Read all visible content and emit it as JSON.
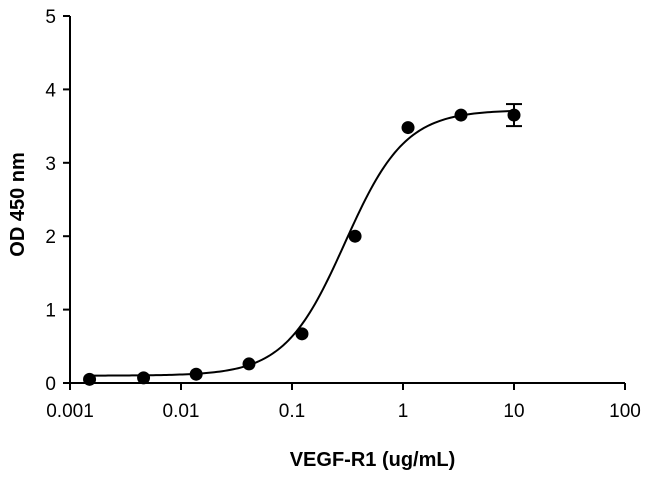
{
  "chart_data": {
    "type": "scatter",
    "title": "",
    "xlabel": "VEGF-R1 (ug/mL)",
    "ylabel": "OD 450 nm",
    "x_scale": "log",
    "xlim": [
      0.001,
      100
    ],
    "ylim": [
      0,
      5
    ],
    "x_ticks": [
      "0.001",
      "0.01",
      "0.1",
      "1",
      "10",
      "100"
    ],
    "y_ticks": [
      "0",
      "1",
      "2",
      "3",
      "4",
      "5"
    ],
    "grid": false,
    "series": [
      {
        "x": [
          0.0015,
          0.0046,
          0.0137,
          0.041,
          0.123,
          0.37,
          1.11,
          3.33,
          10
        ],
        "y": [
          0.05,
          0.07,
          0.12,
          0.26,
          0.67,
          2.0,
          3.48,
          3.65,
          3.65
        ],
        "y_error": [
          0,
          0,
          0,
          0,
          0,
          0,
          0,
          0,
          0.15
        ]
      }
    ],
    "fit": {
      "model": "4PL",
      "bottom": 0.1,
      "top": 3.72,
      "ec50": 0.3,
      "hill": 1.6
    }
  }
}
